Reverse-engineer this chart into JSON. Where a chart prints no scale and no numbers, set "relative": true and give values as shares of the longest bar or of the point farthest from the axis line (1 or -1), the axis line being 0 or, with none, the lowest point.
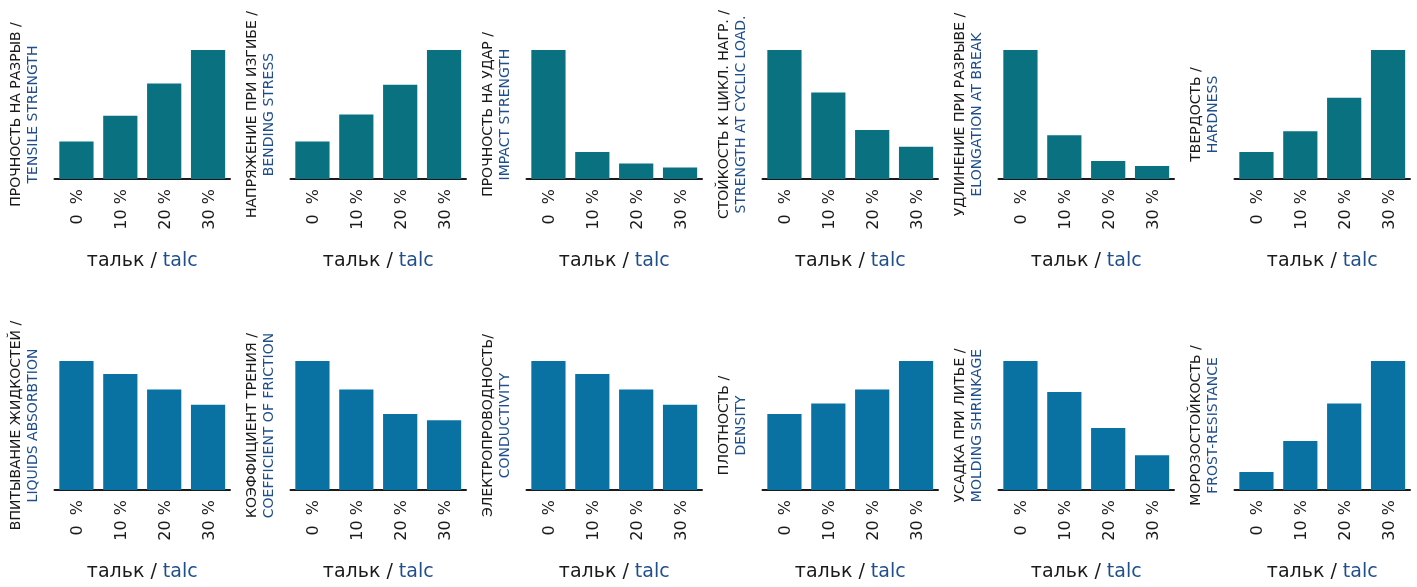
{
  "chart_data": [
    {
      "type": "bar",
      "ylabel": "ПРОЧНОСТЬ НА РАЗРЫВ /\nTENSILE STRENGTH",
      "xlabel": "тальк / talc",
      "categories": [
        "0  %",
        "10 %",
        "20 %",
        "30 %"
      ],
      "values": [
        0.29,
        0.49,
        0.74,
        1
      ],
      "color": "#0a7180",
      "relative": true
    },
    {
      "type": "bar",
      "ylabel": "НАПРЯЖЕНИЕ ПРИ ИЗГИБЕ /\nBENDING STRESS",
      "xlabel": "тальк / talc",
      "categories": [
        "0  %",
        "10 %",
        "20 %",
        "30 %"
      ],
      "values": [
        0.29,
        0.5,
        0.73,
        1
      ],
      "color": "#0a7180",
      "relative": true
    },
    {
      "type": "bar",
      "ylabel": "ПРОЧНОСТЬ НА УДАР /\nIMPACT STRENGTH",
      "xlabel": "тальк / talc",
      "categories": [
        "0  %",
        "10 %",
        "20 %",
        "30 %"
      ],
      "values": [
        1,
        0.21,
        0.12,
        0.09
      ],
      "color": "#0a7180",
      "relative": true
    },
    {
      "type": "bar",
      "ylabel": "СТОЙКОСТЬ К ЦИКЛ. НАГР. /\nSTRENGTH AT CYCLIC LOAD.",
      "xlabel": "тальк / talc",
      "categories": [
        "0  %",
        "10 %",
        "20 %",
        "30 %"
      ],
      "values": [
        1,
        0.67,
        0.38,
        0.25
      ],
      "color": "#0a7180",
      "relative": true
    },
    {
      "type": "bar",
      "ylabel": "УДЛИНЕНИЕ ПРИ РАЗРЫВЕ /\nELONGATION AT BREAK",
      "xlabel": "тальк / talc",
      "categories": [
        "0  %",
        "10 %",
        "20 %",
        "30 %"
      ],
      "values": [
        1,
        0.34,
        0.14,
        0.1
      ],
      "color": "#0a7180",
      "relative": true
    },
    {
      "type": "bar",
      "ylabel": "ТВЕРДОСТЬ /\nHARDNESS",
      "xlabel": "тальк / talc",
      "categories": [
        "0  %",
        "10 %",
        "20 %",
        "30 %"
      ],
      "values": [
        0.21,
        0.37,
        0.63,
        1
      ],
      "color": "#0a7180",
      "relative": true
    },
    {
      "type": "bar",
      "ylabel": "ВПИТЫВАНИЕ ЖИДКОСТЕЙ /\nLIQUIDS ABSORBTION",
      "xlabel": "тальк / talc",
      "categories": [
        "0  %",
        "10 %",
        "20 %",
        "30 %"
      ],
      "values": [
        1,
        0.9,
        0.78,
        0.66
      ],
      "color": "#0a72a3",
      "relative": true
    },
    {
      "type": "bar",
      "ylabel": "КОЭФФИЦИЕНТ ТРЕНИЯ /\nCOEFFICIENT OF FRICTION",
      "xlabel": "тальк / talc",
      "categories": [
        "0  %",
        "10 %",
        "20 %",
        "30 %"
      ],
      "values": [
        1,
        0.78,
        0.59,
        0.54
      ],
      "color": "#0a72a3",
      "relative": true
    },
    {
      "type": "bar",
      "ylabel": "ЭЛЕКТРОПРОВОДНОСТЬ/\nCONDUCTIVITY",
      "xlabel": "тальк / talc",
      "categories": [
        "0  %",
        "10 %",
        "20 %",
        "30 %"
      ],
      "values": [
        1,
        0.9,
        0.78,
        0.66
      ],
      "color": "#0a72a3",
      "relative": true
    },
    {
      "type": "bar",
      "ylabel": "ПЛОТНОСТЬ /\nDENSITY",
      "xlabel": "тальк / talc",
      "categories": [
        "0  %",
        "10 %",
        "20 %",
        "30 %"
      ],
      "values": [
        0.59,
        0.67,
        0.78,
        1
      ],
      "color": "#0a72a3",
      "relative": true
    },
    {
      "type": "bar",
      "ylabel": "УСАДКА ПРИ ЛИТЬЕ /\nMOLDING SHRINKAGE",
      "xlabel": "тальк / talc",
      "categories": [
        "0  %",
        "10 %",
        "20 %",
        "30 %"
      ],
      "values": [
        1,
        0.76,
        0.48,
        0.27
      ],
      "color": "#0a72a3",
      "relative": true
    },
    {
      "type": "bar",
      "ylabel": "МОРОЗОСТОЙКОСТЬ /\nFROST-RESISTANCE",
      "xlabel": "тальк / talc",
      "categories": [
        "0  %",
        "10 %",
        "20 %",
        "30 %"
      ],
      "values": [
        0.14,
        0.38,
        0.67,
        1
      ],
      "color": "#0a72a3",
      "relative": true
    }
  ]
}
